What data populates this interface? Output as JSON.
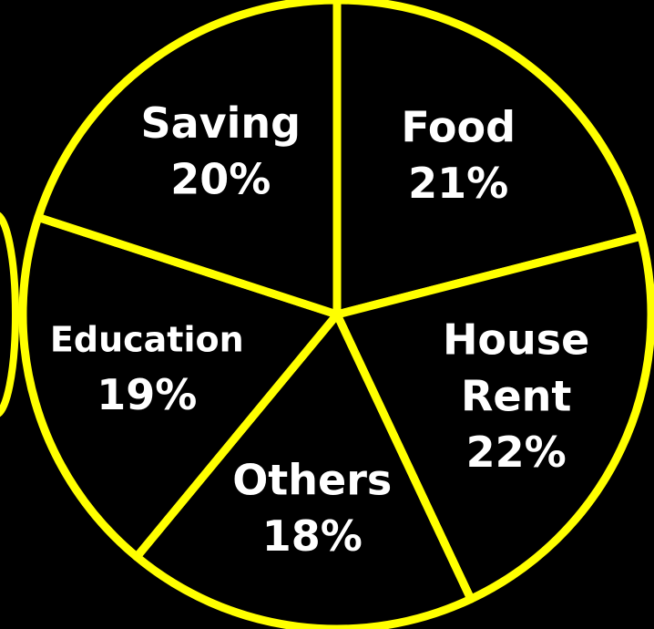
{
  "chart_data": {
    "type": "pie",
    "categories": [
      "Food",
      "House Rent",
      "Others",
      "Education",
      "Saving"
    ],
    "values": [
      21,
      22,
      18,
      19,
      20
    ],
    "value_labels": [
      "21%",
      "22%",
      "18%",
      "19%",
      "20%"
    ],
    "color": "#ffff00"
  }
}
